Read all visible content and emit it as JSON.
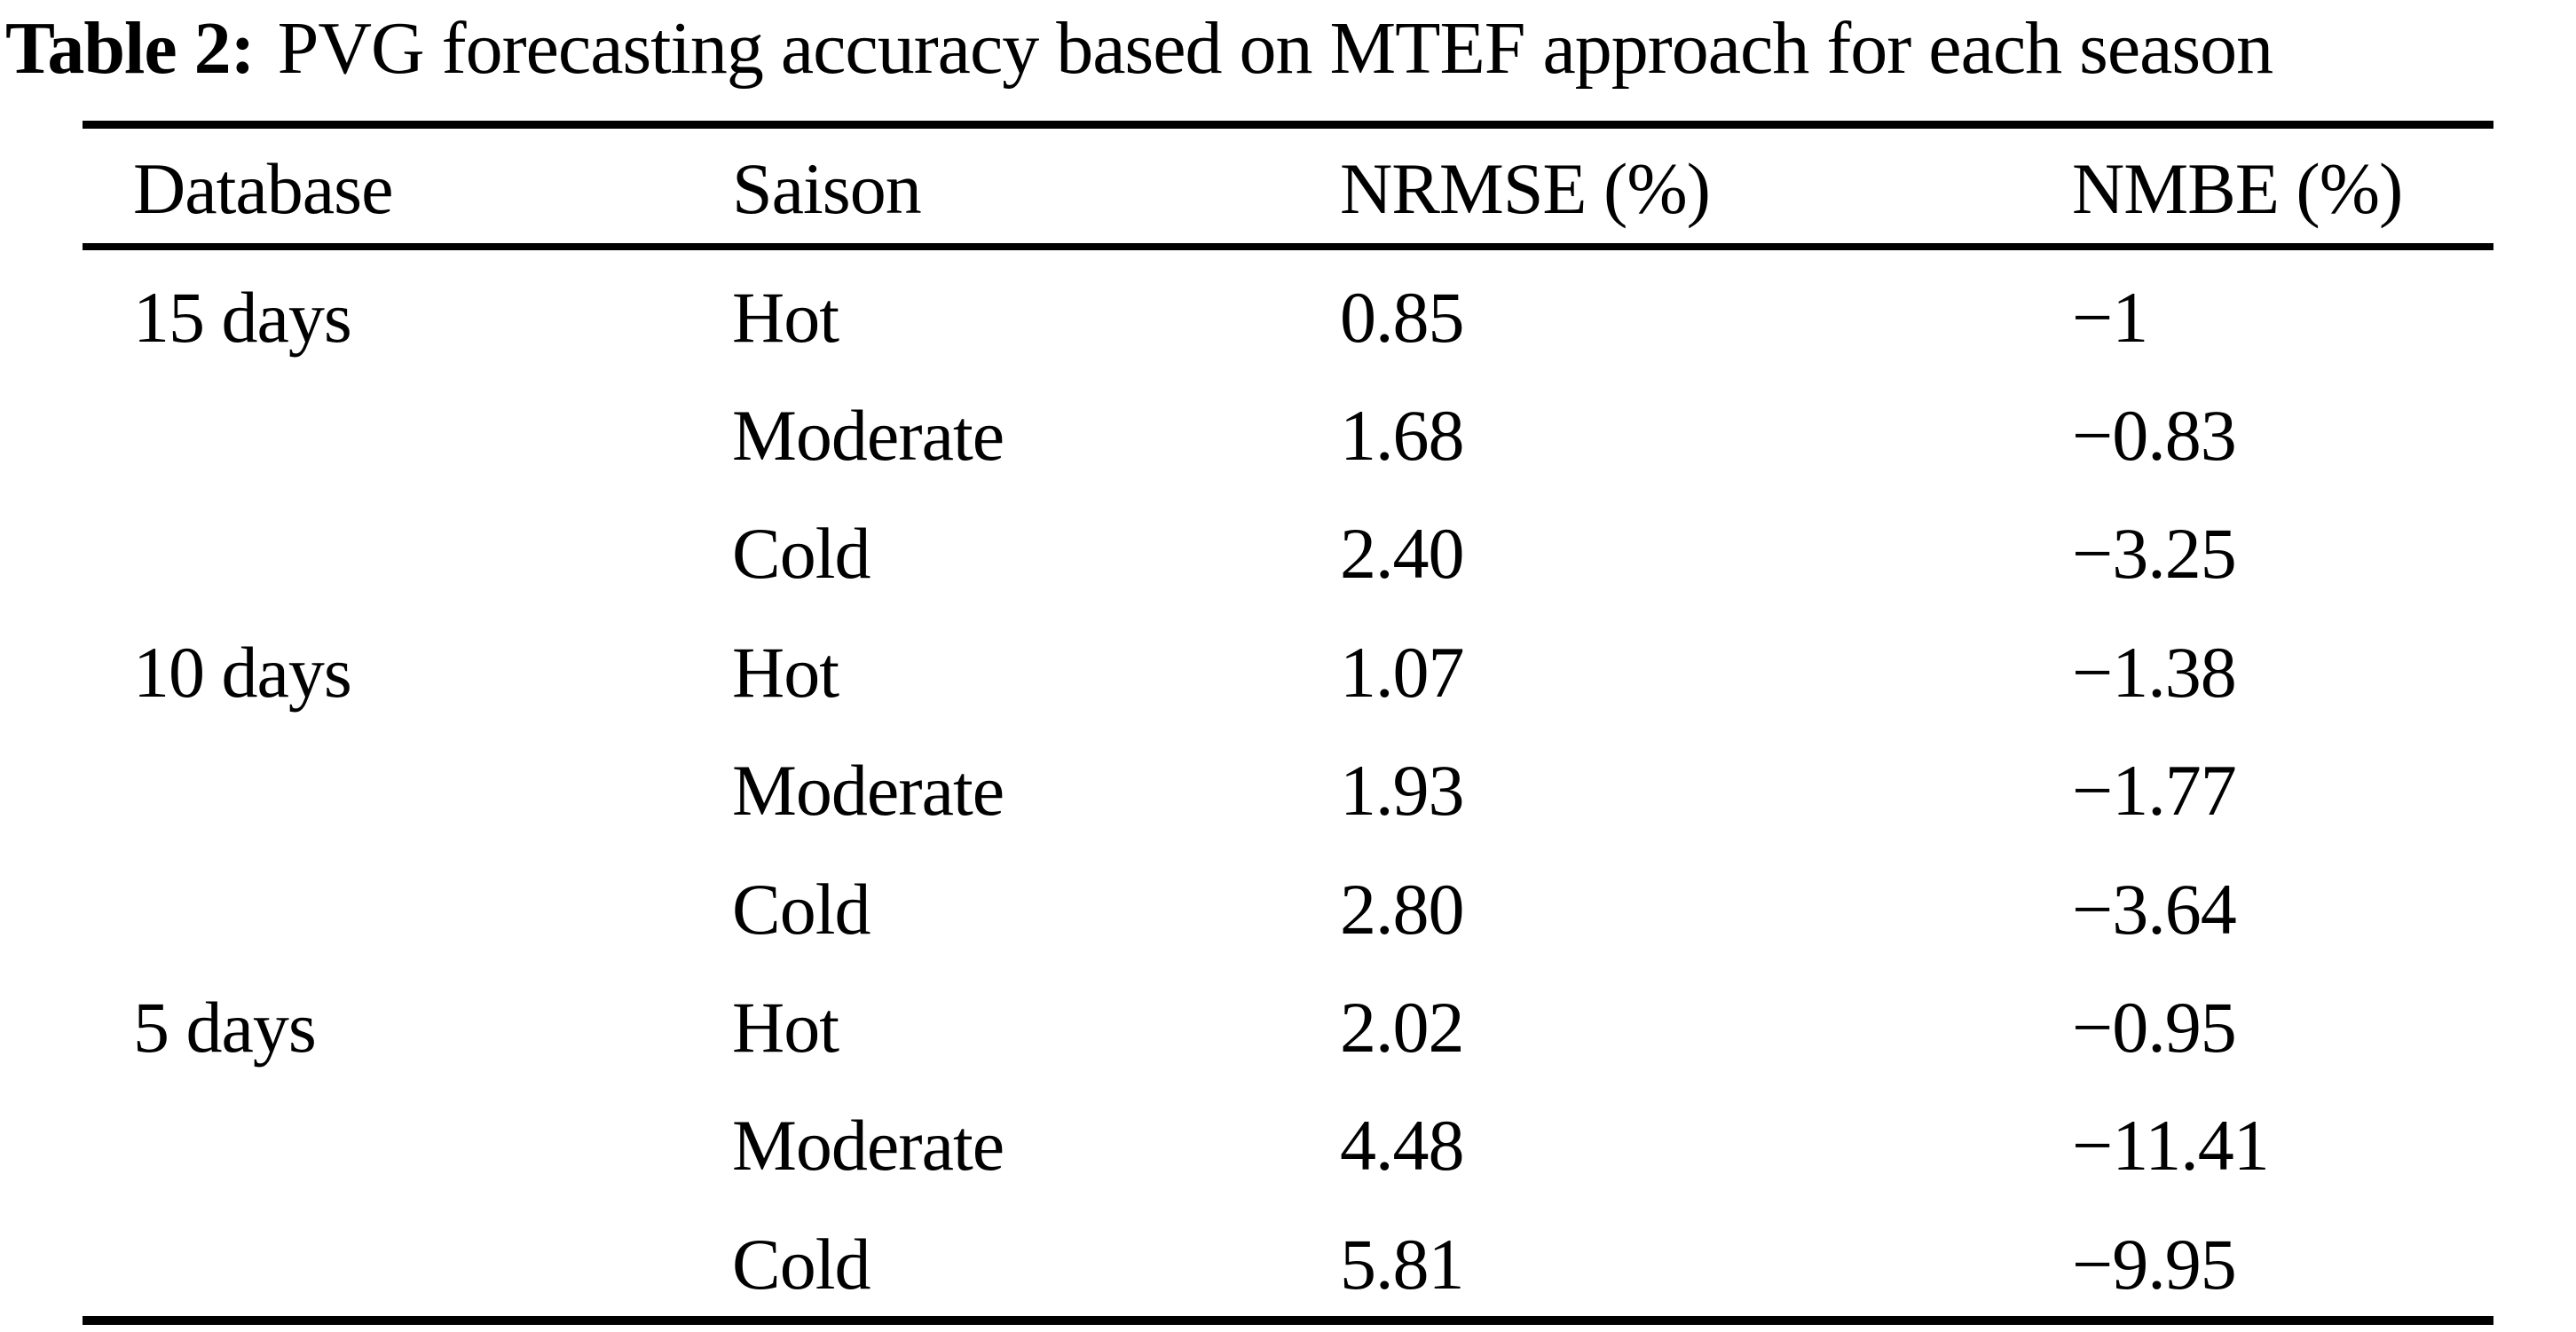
{
  "title": {
    "label": "Table 2:",
    "text": "PVG forecasting accuracy based on MTEF approach for each season"
  },
  "table": {
    "columns": [
      "Database",
      "Saison",
      "NRMSE (%)",
      "NMBE (%)"
    ],
    "rows": [
      {
        "database": "15 days",
        "saison": "Hot",
        "nrmse": "0.85",
        "nmbe": "−1"
      },
      {
        "database": "",
        "saison": "Moderate",
        "nrmse": "1.68",
        "nmbe": "−0.83"
      },
      {
        "database": "",
        "saison": "Cold",
        "nrmse": "2.40",
        "nmbe": "−3.25"
      },
      {
        "database": "10 days",
        "saison": "Hot",
        "nrmse": "1.07",
        "nmbe": "−1.38"
      },
      {
        "database": "",
        "saison": "Moderate",
        "nrmse": "1.93",
        "nmbe": "−1.77"
      },
      {
        "database": "",
        "saison": "Cold",
        "nrmse": "2.80",
        "nmbe": "−3.64"
      },
      {
        "database": "5 days",
        "saison": "Hot",
        "nrmse": "2.02",
        "nmbe": "−0.95"
      },
      {
        "database": "",
        "saison": "Moderate",
        "nrmse": "4.48",
        "nmbe": "−11.41"
      },
      {
        "database": "",
        "saison": "Cold",
        "nrmse": "5.81",
        "nmbe": "−9.95"
      }
    ]
  },
  "chart_data": {
    "type": "table",
    "title": "Table 2: PVG forecasting accuracy based on MTEF approach for each season",
    "columns": [
      "Database",
      "Saison",
      "NRMSE (%)",
      "NMBE (%)"
    ],
    "series": [
      {
        "name": "15 days",
        "seasons": [
          "Hot",
          "Moderate",
          "Cold"
        ],
        "nrmse_pct": [
          0.85,
          1.68,
          2.4
        ],
        "nmbe_pct": [
          -1,
          -0.83,
          -3.25
        ]
      },
      {
        "name": "10 days",
        "seasons": [
          "Hot",
          "Moderate",
          "Cold"
        ],
        "nrmse_pct": [
          1.07,
          1.93,
          2.8
        ],
        "nmbe_pct": [
          -1.38,
          -1.77,
          -3.64
        ]
      },
      {
        "name": "5 days",
        "seasons": [
          "Hot",
          "Moderate",
          "Cold"
        ],
        "nrmse_pct": [
          2.02,
          4.48,
          5.81
        ],
        "nmbe_pct": [
          -0.95,
          -11.41,
          -9.95
        ]
      }
    ]
  },
  "colors": {
    "text": "#000000",
    "background": "#ffffff",
    "rule": "#000000"
  }
}
